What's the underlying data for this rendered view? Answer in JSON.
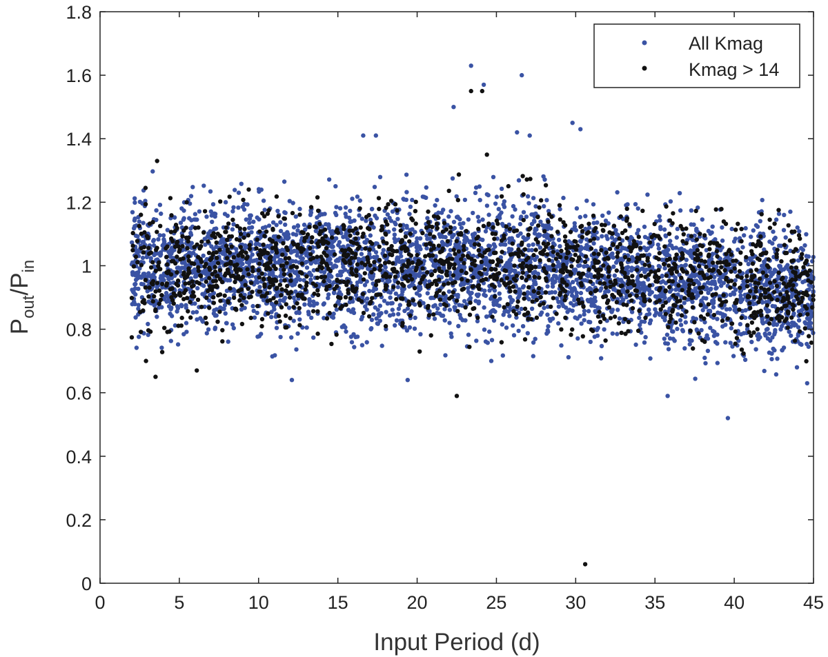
{
  "chart_data": {
    "type": "scatter",
    "xlabel": "Input Period (d)",
    "ylabel": {
      "main": "P",
      "sub1": "out",
      "slash": "/P",
      "sub2": "in"
    },
    "xlim": [
      0,
      45
    ],
    "ylim": [
      0,
      1.8
    ],
    "xticks": [
      "0",
      "5",
      "10",
      "15",
      "20",
      "25",
      "30",
      "35",
      "40",
      "45"
    ],
    "yticks": [
      "0",
      "0.2",
      "0.4",
      "0.6",
      "0.8",
      "1",
      "1.2",
      "1.4",
      "1.6",
      "1.8"
    ],
    "grid": false,
    "legend_position": "top-right",
    "series": [
      {
        "name": "All Kmag",
        "color": "#3a53a4",
        "points_per_unit_x": 90,
        "x_range": [
          2,
          45
        ],
        "center_y": 1.0,
        "center_trend": [
          [
            2,
            1.0
          ],
          [
            28,
            1.0
          ],
          [
            45,
            0.9
          ]
        ],
        "spread_sd": 0.1,
        "outliers": [
          [
            22.3,
            1.5
          ],
          [
            23.4,
            1.63
          ],
          [
            24.2,
            1.57
          ],
          [
            26.6,
            1.6
          ],
          [
            16.6,
            1.41
          ],
          [
            17.4,
            1.41
          ],
          [
            29.8,
            1.45
          ],
          [
            30.3,
            1.43
          ],
          [
            26.3,
            1.42
          ],
          [
            12.1,
            0.64
          ],
          [
            19.4,
            0.64
          ],
          [
            35.8,
            0.59
          ],
          [
            39.6,
            0.52
          ],
          [
            44.6,
            0.63
          ],
          [
            27.1,
            1.41
          ]
        ]
      },
      {
        "name": "Kmag > 14",
        "color": "#111111",
        "points_per_unit_x": 40,
        "x_range": [
          2,
          45
        ],
        "center_y": 1.0,
        "center_trend": [
          [
            2,
            1.0
          ],
          [
            28,
            1.0
          ],
          [
            45,
            0.92
          ]
        ],
        "spread_sd": 0.09,
        "outliers": [
          [
            23.4,
            1.55
          ],
          [
            24.1,
            1.55
          ],
          [
            3.6,
            1.33
          ],
          [
            24.4,
            1.35
          ],
          [
            22.5,
            0.59
          ],
          [
            30.6,
            0.06
          ],
          [
            6.1,
            0.67
          ],
          [
            3.5,
            0.65
          ],
          [
            2.9,
            0.7
          ]
        ]
      }
    ]
  }
}
